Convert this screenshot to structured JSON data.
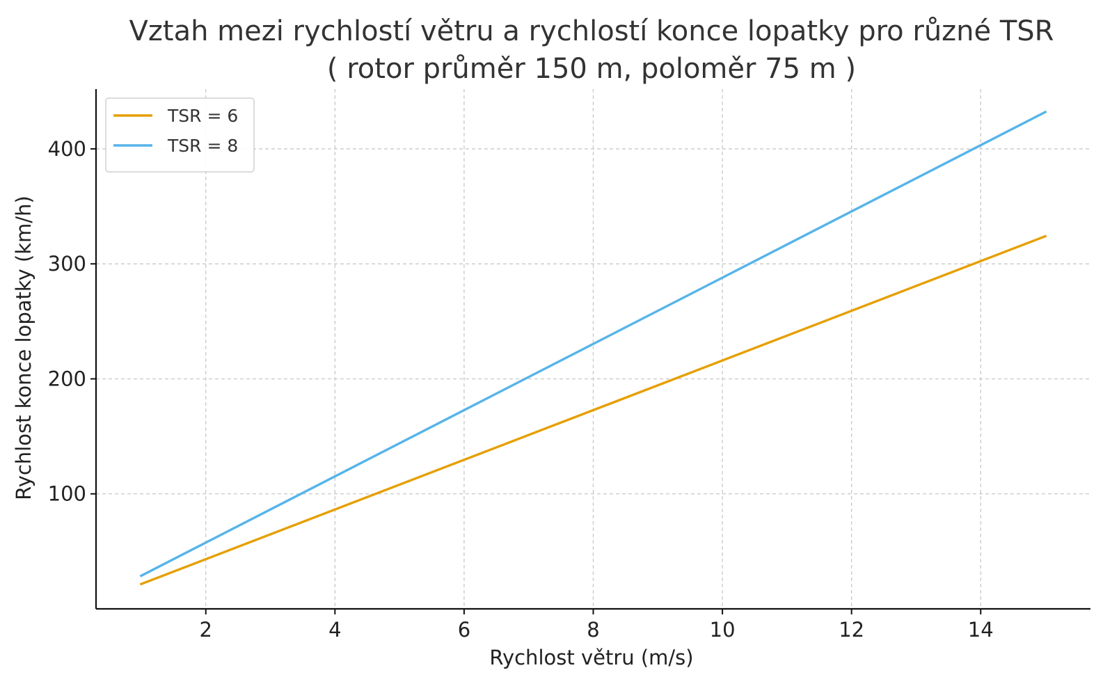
{
  "chart_data": {
    "type": "line",
    "title": "Vztah mezi rychlostí větru a rychlostí konce lopatky pro různé TSR",
    "subtitle": "( rotor průměr 150 m, poloměr 75 m )",
    "xlabel": "Rychlost větru (m/s)",
    "ylabel": "Rychlost konce lopatky (km/h)",
    "xlim": [
      0.3,
      15.7
    ],
    "ylim": [
      0,
      452
    ],
    "xticks": [
      2,
      4,
      6,
      8,
      10,
      12,
      14
    ],
    "yticks": [
      100,
      200,
      300,
      400
    ],
    "grid": true,
    "legend_position": "top-left",
    "series": [
      {
        "name": "TSR = 6",
        "color": "#E69F00",
        "x": [
          1,
          15
        ],
        "values": [
          21.6,
          324
        ]
      },
      {
        "name": "TSR = 8",
        "color": "#56B4E9",
        "x": [
          1,
          15
        ],
        "values": [
          28.8,
          432
        ]
      }
    ]
  }
}
